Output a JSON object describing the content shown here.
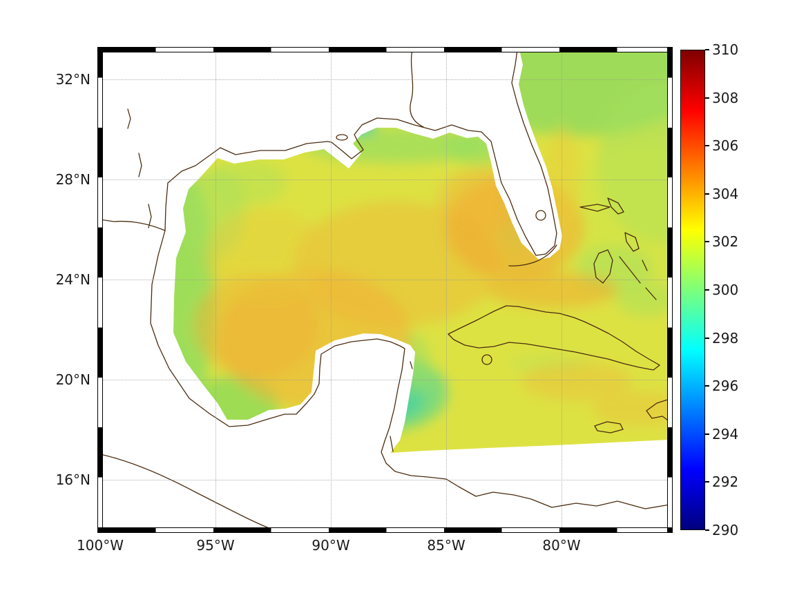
{
  "figure": {
    "background_color": "#ffffff",
    "kind": "geographic heatmap with colorbar"
  },
  "axes": {
    "x_ticks": [
      {
        "label": "100°W",
        "lon": 100
      },
      {
        "label": "95°W",
        "lon": 95
      },
      {
        "label": "90°W",
        "lon": 90
      },
      {
        "label": "85°W",
        "lon": 85
      },
      {
        "label": "80°W",
        "lon": 80
      }
    ],
    "y_ticks": [
      {
        "label": "16°N",
        "lat": 16
      },
      {
        "label": "20°N",
        "lat": 20
      },
      {
        "label": "24°N",
        "lat": 24
      },
      {
        "label": "28°N",
        "lat": 28
      },
      {
        "label": "32°N",
        "lat": 32
      }
    ]
  },
  "colorbar": {
    "min": 290,
    "max": 310,
    "ticks": [
      {
        "label": "310",
        "value": 310
      },
      {
        "label": "308",
        "value": 308
      },
      {
        "label": "306",
        "value": 306
      },
      {
        "label": "304",
        "value": 304
      },
      {
        "label": "302",
        "value": 302
      },
      {
        "label": "300",
        "value": 300
      },
      {
        "label": "298",
        "value": 298
      },
      {
        "label": "296",
        "value": 296
      },
      {
        "label": "294",
        "value": 294
      },
      {
        "label": "292",
        "value": 292
      },
      {
        "label": "290",
        "value": 290
      }
    ],
    "colormap": "jet",
    "gradient_stops": [
      {
        "value": 290,
        "color": "#00007f"
      },
      {
        "value": 292.5,
        "color": "#0000ff"
      },
      {
        "value": 297.5,
        "color": "#00ffff"
      },
      {
        "value": 300,
        "color": "#7dff7a"
      },
      {
        "value": 302.5,
        "color": "#ffff00"
      },
      {
        "value": 307.5,
        "color": "#ff0000"
      },
      {
        "value": 310,
        "color": "#7f0000"
      }
    ]
  },
  "map_style": {
    "coastline_color": "#4a2c10",
    "sea_base_color": "#dde243",
    "land_mask_color": "#ffffff",
    "gridline_style": "dotted gray graticule"
  },
  "chart_data": {
    "type": "heatmap",
    "title": "",
    "xlabel": "",
    "ylabel": "",
    "x_tick_labels": [
      "100°W",
      "95°W",
      "90°W",
      "85°W",
      "80°W"
    ],
    "y_tick_labels": [
      "16°N",
      "20°N",
      "24°N",
      "28°N",
      "32°N"
    ],
    "lon_range_deg_west": [
      100,
      75.3
    ],
    "lat_range_deg_north": [
      14.1,
      33.2
    ],
    "colormap": "jet",
    "colorbar_ticks": [
      290,
      292,
      294,
      296,
      298,
      300,
      302,
      304,
      306,
      308,
      310
    ],
    "colorbar_range": [
      290,
      310
    ],
    "grid": "dotted graticule at labeled meridians/parallels",
    "legend_position": "vertical colorbar at right",
    "depicted_region": "Gulf of Mexico, Florida, Cuba, Yucatan, NW Caribbean and western North Atlantic; white areas are land / masked data; coastlines drawn in dark brown",
    "regions_estimated_values": [
      {
        "region": "western & central Gulf of Mexico interior",
        "value": 302.5
      },
      {
        "region": "Loop Current / eastern Gulf near Florida",
        "value": 303
      },
      {
        "region": "Texas–Mexico shelf fringe",
        "value": 300
      },
      {
        "region": "Campeche Bank (southeastern Gulf)",
        "value": 299
      },
      {
        "region": "Mississippi coastal spot",
        "value": 297.5
      },
      {
        "region": "Straits of Florida / north of Cuba",
        "value": 302.5
      },
      {
        "region": "Atlantic northeast corner east of Florida",
        "value": 300.5
      },
      {
        "region": "Bahamas banks",
        "value": 300.5
      },
      {
        "region": "Caribbean south of Cuba",
        "value": 301.5
      },
      {
        "region": "land / no-data mask",
        "value": null
      }
    ]
  }
}
